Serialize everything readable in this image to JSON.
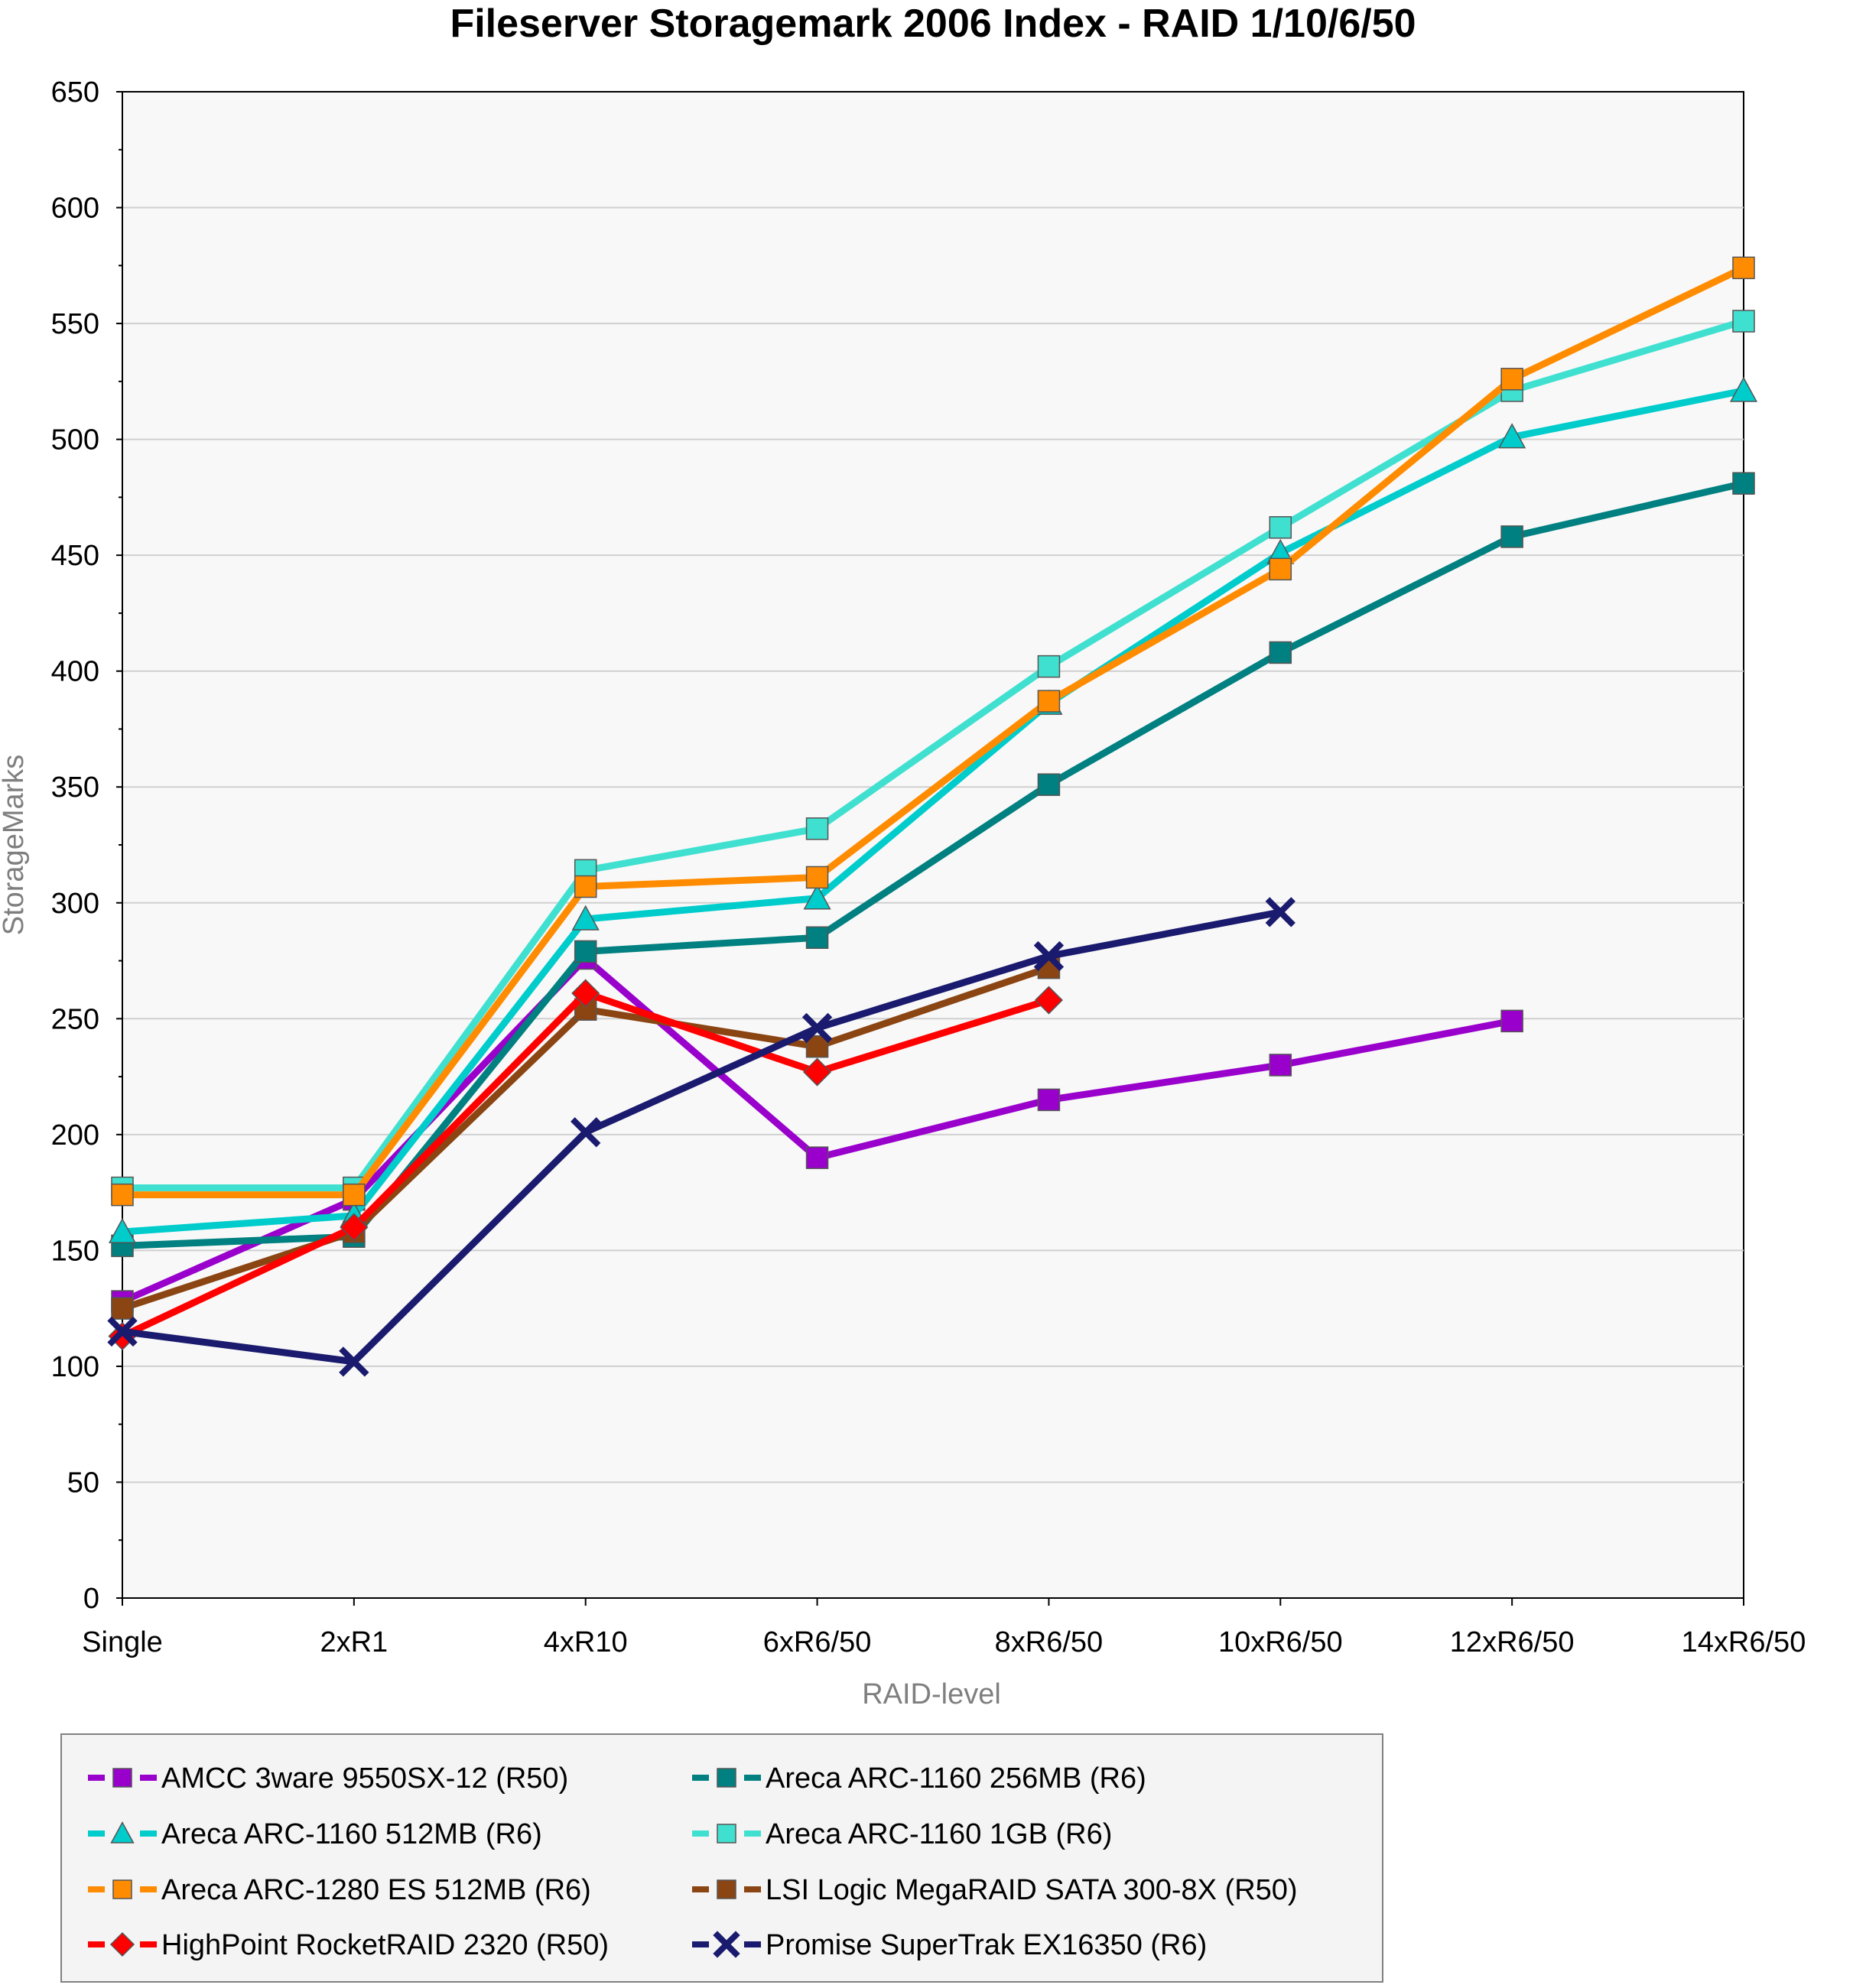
{
  "chart_data": {
    "type": "line",
    "title": "Fileserver Storagemark 2006 Index - RAID 1/10/6/50",
    "xlabel": "RAID-level",
    "ylabel": "StorageMarks",
    "ylim": [
      0,
      650
    ],
    "yticks": [
      0,
      50,
      100,
      150,
      200,
      250,
      300,
      350,
      400,
      450,
      500,
      550,
      600,
      650
    ],
    "categories": [
      "Single",
      "2xR1",
      "4xR10",
      "6xR6/50",
      "8xR6/50",
      "10xR6/50",
      "12xR6/50",
      "14xR6/50"
    ],
    "grid": "horizontal",
    "legend_position": "bottom",
    "series": [
      {
        "name": "AMCC 3ware 9550SX-12 (R50)",
        "color": "#9900cc",
        "marker": "square",
        "values": [
          128,
          172,
          276,
          190,
          215,
          230,
          249,
          null
        ]
      },
      {
        "name": "Areca ARC-1160 256MB  (R6)",
        "color": "#008080",
        "marker": "square",
        "values": [
          152,
          156,
          279,
          285,
          351,
          408,
          458,
          481
        ]
      },
      {
        "name": "Areca ARC-1160 512MB (R6)",
        "color": "#00cccc",
        "marker": "triangle",
        "values": [
          158,
          165,
          293,
          302,
          386,
          451,
          501,
          521
        ]
      },
      {
        "name": "Areca ARC-1160 1GB (R6)",
        "color": "#40e0d0",
        "marker": "square",
        "values": [
          177,
          177,
          314,
          332,
          402,
          462,
          521,
          551
        ]
      },
      {
        "name": "Areca ARC-1280 ES 512MB (R6)",
        "color": "#ff8c00",
        "marker": "square",
        "values": [
          174,
          174,
          307,
          311,
          387,
          444,
          526,
          574
        ]
      },
      {
        "name": "LSI Logic MegaRAID SATA 300-8X (R50)",
        "color": "#8b4513",
        "marker": "square",
        "values": [
          125,
          158,
          254,
          238,
          272,
          null,
          null,
          null
        ]
      },
      {
        "name": "HighPoint RocketRAID 2320 (R50)",
        "color": "#ff0000",
        "marker": "diamond",
        "values": [
          113,
          160,
          261,
          227,
          258,
          null,
          null,
          null
        ]
      },
      {
        "name": "Promise SuperTrak EX16350 (R6)",
        "color": "#1a1a6e",
        "marker": "x",
        "values": [
          115,
          102,
          201,
          246,
          277,
          296,
          null,
          null
        ]
      }
    ]
  }
}
